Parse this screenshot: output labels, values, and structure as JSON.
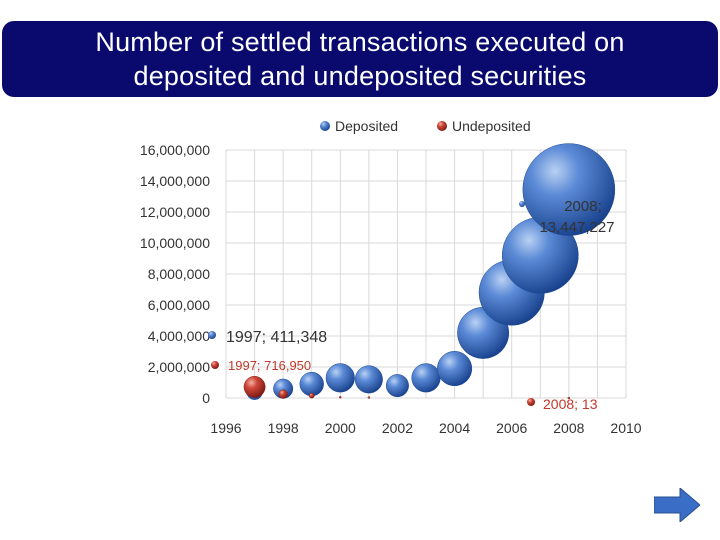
{
  "slide": {
    "title_line1": "Number of settled transactions executed on",
    "title_line2": "deposited and undeposited securities"
  },
  "colors": {
    "title_bg": "#0a0a6e",
    "deposited": "#3d6fc1",
    "undeposited": "#c0392b",
    "grid": "#d9d9d9",
    "nav_arrow": "#3a6ec6"
  },
  "chart_data": {
    "type": "bubble",
    "title": "",
    "xlabel": "",
    "ylabel": "",
    "xlim": [
      1996,
      2010
    ],
    "ylim": [
      0,
      16000000
    ],
    "x_ticks": [
      "1996",
      "1998",
      "2000",
      "2002",
      "2004",
      "2006",
      "2008",
      "2010"
    ],
    "y_ticks": [
      "0",
      "2,000,000",
      "4,000,000",
      "6,000,000",
      "8,000,000",
      "10,000,000",
      "12,000,000",
      "14,000,000",
      "16,000,000"
    ],
    "grid": true,
    "legend_position": "top",
    "legend": [
      "Deposited",
      "Undeposited"
    ],
    "series": [
      {
        "name": "Deposited",
        "points": [
          {
            "x": 1997,
            "y": 411348,
            "size": 411348
          },
          {
            "x": 1998,
            "y": 600000,
            "size": 600000
          },
          {
            "x": 1999,
            "y": 900000,
            "size": 900000
          },
          {
            "x": 2000,
            "y": 1300000,
            "size": 1300000
          },
          {
            "x": 2001,
            "y": 1200000,
            "size": 1200000
          },
          {
            "x": 2002,
            "y": 800000,
            "size": 800000
          },
          {
            "x": 2003,
            "y": 1300000,
            "size": 1300000
          },
          {
            "x": 2004,
            "y": 1900000,
            "size": 1900000
          },
          {
            "x": 2005,
            "y": 4200000,
            "size": 4200000
          },
          {
            "x": 2006,
            "y": 6800000,
            "size": 6800000
          },
          {
            "x": 2007,
            "y": 9200000,
            "size": 9200000
          },
          {
            "x": 2008,
            "y": 13447227,
            "size": 13447227
          }
        ]
      },
      {
        "name": "Undeposited",
        "points": [
          {
            "x": 1997,
            "y": 716950,
            "size": 716950
          },
          {
            "x": 1998,
            "y": 250000,
            "size": 120000
          },
          {
            "x": 1999,
            "y": 150000,
            "size": 40000
          },
          {
            "x": 2000,
            "y": 50000,
            "size": 1000
          },
          {
            "x": 2001,
            "y": 30000,
            "size": 500
          },
          {
            "x": 2008,
            "y": 13,
            "size": 13
          }
        ]
      }
    ],
    "annotations": [
      {
        "text_line1": "1997; 411,348",
        "text_line2": "",
        "series": "Deposited"
      },
      {
        "text_line1": "1997; 716,950",
        "text_line2": "",
        "series": "Undeposited"
      },
      {
        "text_line1": "2008;",
        "text_line2": "13,447,227",
        "series": "Deposited"
      },
      {
        "text_line1": "2008; 13",
        "text_line2": "",
        "series": "Undeposited"
      }
    ]
  }
}
